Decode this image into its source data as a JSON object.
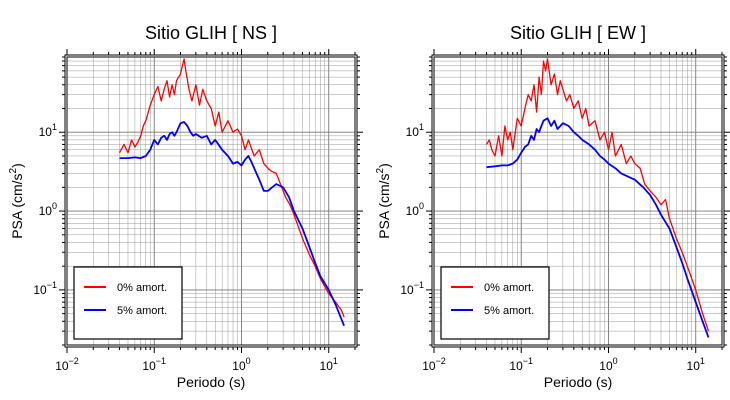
{
  "chart_data": [
    {
      "type": "line",
      "title": "Sitio GLIH [ NS ]",
      "xlabel": "Periodo (s)",
      "ylabel": "PSA (cm/s2)",
      "ylabel_base": "PSA (cm/s",
      "ylabel_sup": "2",
      "ylabel_close": ")",
      "xscale": "log",
      "yscale": "log",
      "xlim": [
        0.01,
        20
      ],
      "ylim": [
        0.02,
        90
      ],
      "grid": true,
      "legend": "bottom-left",
      "xticks": [
        {
          "value": 0.01,
          "base": "10",
          "exp": "−2"
        },
        {
          "value": 0.1,
          "base": "10",
          "exp": "−1"
        },
        {
          "value": 1,
          "base": "10",
          "exp": "0"
        },
        {
          "value": 10,
          "base": "10",
          "exp": "1"
        }
      ],
      "yticks": [
        {
          "value": 0.1,
          "base": "10",
          "exp": "−1"
        },
        {
          "value": 1,
          "base": "10",
          "exp": "0"
        },
        {
          "value": 10,
          "base": "10",
          "exp": "1"
        }
      ],
      "series": [
        {
          "name": "0% amort.",
          "color": "#ff0000",
          "x": [
            0.04,
            0.045,
            0.05,
            0.055,
            0.06,
            0.065,
            0.07,
            0.075,
            0.08,
            0.09,
            0.1,
            0.11,
            0.12,
            0.13,
            0.14,
            0.15,
            0.16,
            0.17,
            0.18,
            0.19,
            0.2,
            0.21,
            0.22,
            0.23,
            0.25,
            0.27,
            0.3,
            0.33,
            0.36,
            0.4,
            0.45,
            0.5,
            0.55,
            0.6,
            0.7,
            0.8,
            0.9,
            1.0,
            1.1,
            1.2,
            1.4,
            1.6,
            1.8,
            2.0,
            2.2,
            2.5,
            2.8,
            3.2,
            3.6,
            4,
            5,
            6,
            7,
            8,
            9,
            10,
            12,
            14,
            15
          ],
          "y": [
            5.5,
            7,
            5.5,
            8,
            6.5,
            7.5,
            9,
            12,
            14,
            22,
            30,
            38,
            25,
            35,
            45,
            28,
            40,
            30,
            45,
            50,
            55,
            70,
            85,
            60,
            35,
            25,
            40,
            22,
            35,
            25,
            20,
            12,
            18,
            10,
            14,
            10,
            11,
            9,
            6,
            8,
            5,
            6,
            4,
            3.5,
            3.2,
            3,
            2.2,
            1.5,
            1.2,
            0.9,
            0.45,
            0.28,
            0.2,
            0.14,
            0.11,
            0.09,
            0.07,
            0.055,
            0.045
          ]
        },
        {
          "name": "5% amort.",
          "color": "#0000ff",
          "x": [
            0.04,
            0.05,
            0.06,
            0.07,
            0.08,
            0.09,
            0.1,
            0.11,
            0.12,
            0.13,
            0.14,
            0.15,
            0.16,
            0.17,
            0.18,
            0.2,
            0.22,
            0.24,
            0.26,
            0.28,
            0.3,
            0.35,
            0.4,
            0.45,
            0.5,
            0.6,
            0.7,
            0.8,
            0.9,
            1.0,
            1.1,
            1.2,
            1.3,
            1.4,
            1.6,
            1.8,
            2.0,
            2.5,
            3.0,
            3.5,
            4,
            5,
            6,
            7,
            8,
            10,
            12,
            15
          ],
          "y": [
            4.7,
            4.7,
            4.8,
            4.7,
            5,
            6,
            8,
            7,
            8.5,
            9,
            8,
            9.5,
            10,
            9,
            10,
            13,
            13.5,
            12,
            10,
            9,
            9.5,
            8.5,
            9,
            7,
            8,
            6,
            5,
            4,
            4.2,
            3.8,
            4.5,
            5,
            4.2,
            3.5,
            2.5,
            1.8,
            1.8,
            2.2,
            2.0,
            1.5,
            1.0,
            0.6,
            0.35,
            0.22,
            0.15,
            0.1,
            0.065,
            0.035
          ]
        }
      ]
    },
    {
      "type": "line",
      "title": "Sitio GLIH [ EW ]",
      "xlabel": "Periodo (s)",
      "ylabel": "PSA (cm/s2)",
      "ylabel_base": "PSA (cm/s",
      "ylabel_sup": "2",
      "ylabel_close": ")",
      "xscale": "log",
      "yscale": "log",
      "xlim": [
        0.01,
        20
      ],
      "ylim": [
        0.02,
        90
      ],
      "grid": true,
      "legend": "bottom-left",
      "xticks": [
        {
          "value": 0.01,
          "base": "10",
          "exp": "−2"
        },
        {
          "value": 0.1,
          "base": "10",
          "exp": "−1"
        },
        {
          "value": 1,
          "base": "10",
          "exp": "0"
        },
        {
          "value": 10,
          "base": "10",
          "exp": "1"
        }
      ],
      "yticks": [
        {
          "value": 0.1,
          "base": "10",
          "exp": "−1"
        },
        {
          "value": 1,
          "base": "10",
          "exp": "0"
        },
        {
          "value": 10,
          "base": "10",
          "exp": "1"
        }
      ],
      "series": [
        {
          "name": "0% amort.",
          "color": "#ff0000",
          "x": [
            0.04,
            0.043,
            0.046,
            0.05,
            0.055,
            0.06,
            0.065,
            0.07,
            0.075,
            0.08,
            0.09,
            0.1,
            0.11,
            0.12,
            0.13,
            0.14,
            0.15,
            0.16,
            0.17,
            0.18,
            0.19,
            0.2,
            0.22,
            0.24,
            0.26,
            0.28,
            0.3,
            0.33,
            0.36,
            0.4,
            0.45,
            0.5,
            0.55,
            0.6,
            0.7,
            0.8,
            0.9,
            1.0,
            1.1,
            1.2,
            1.4,
            1.6,
            1.8,
            2.0,
            2.3,
            2.6,
            3.0,
            3.5,
            4,
            4.5,
            5,
            6,
            7,
            8,
            10,
            12,
            14
          ],
          "y": [
            7,
            8,
            6,
            5,
            9,
            5,
            12,
            8,
            10,
            6,
            15,
            12,
            20,
            30,
            25,
            40,
            18,
            50,
            30,
            80,
            60,
            85,
            40,
            55,
            30,
            45,
            35,
            25,
            30,
            20,
            25,
            15,
            20,
            12,
            14,
            8,
            10,
            6,
            10,
            5,
            7,
            4,
            5,
            4,
            3.5,
            2.2,
            1.8,
            1.5,
            1.2,
            1.4,
            0.8,
            0.45,
            0.3,
            0.2,
            0.1,
            0.05,
            0.03
          ]
        },
        {
          "name": "5% amort.",
          "color": "#0000ff",
          "x": [
            0.04,
            0.05,
            0.06,
            0.07,
            0.08,
            0.09,
            0.1,
            0.11,
            0.12,
            0.13,
            0.14,
            0.15,
            0.16,
            0.17,
            0.18,
            0.2,
            0.22,
            0.24,
            0.26,
            0.28,
            0.3,
            0.35,
            0.4,
            0.45,
            0.5,
            0.6,
            0.7,
            0.8,
            0.9,
            1.0,
            1.2,
            1.4,
            1.6,
            2.0,
            2.5,
            3.0,
            3.5,
            4,
            5,
            6,
            7,
            8,
            10,
            12,
            14
          ],
          "y": [
            3.6,
            3.7,
            3.8,
            3.8,
            4,
            4.5,
            5.5,
            6.5,
            7,
            9,
            8,
            11,
            10,
            12,
            14,
            15,
            12,
            14,
            11,
            12,
            13,
            12,
            10,
            9,
            8,
            7,
            6,
            5,
            4.5,
            4,
            3.5,
            3,
            2.8,
            2.5,
            2.0,
            1.6,
            1.2,
            0.9,
            0.6,
            0.35,
            0.22,
            0.14,
            0.07,
            0.04,
            0.025
          ]
        }
      ]
    }
  ]
}
